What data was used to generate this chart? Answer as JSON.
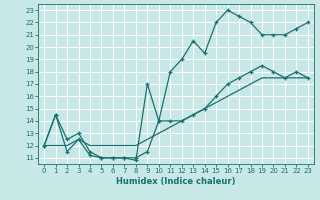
{
  "xlabel": "Humidex (Indice chaleur)",
  "bg_color": "#c8e8e8",
  "grid_color": "#ffffff",
  "line_color": "#1a7070",
  "xlim": [
    -0.5,
    23.5
  ],
  "ylim": [
    10.5,
    23.5
  ],
  "xticks": [
    0,
    1,
    2,
    3,
    4,
    5,
    6,
    7,
    8,
    9,
    10,
    11,
    12,
    13,
    14,
    15,
    16,
    17,
    18,
    19,
    20,
    21,
    22,
    23
  ],
  "yticks": [
    11,
    12,
    13,
    14,
    15,
    16,
    17,
    18,
    19,
    20,
    21,
    22,
    23
  ],
  "line1_x": [
    0,
    1,
    2,
    3,
    4,
    5,
    6,
    7,
    8,
    9,
    10,
    11,
    12,
    13,
    14,
    15,
    16,
    17,
    18,
    19,
    20,
    21,
    22,
    23
  ],
  "line1_y": [
    12,
    14.5,
    11.5,
    12.5,
    11.2,
    11,
    11,
    11,
    11,
    11.5,
    14,
    18,
    19,
    20.5,
    19.5,
    22,
    23,
    22.5,
    22,
    21,
    21,
    21,
    21.5,
    22
  ],
  "line2_x": [
    0,
    1,
    2,
    3,
    4,
    5,
    6,
    7,
    8,
    9,
    10,
    11,
    12,
    13,
    14,
    15,
    16,
    17,
    18,
    19,
    20,
    21,
    22,
    23
  ],
  "line2_y": [
    12,
    14.5,
    12.5,
    13,
    11.5,
    11,
    11,
    11,
    10.8,
    17,
    14,
    14,
    14,
    14.5,
    15,
    16,
    17,
    17.5,
    18,
    18.5,
    18,
    17.5,
    18,
    17.5
  ],
  "line3_x": [
    0,
    1,
    2,
    3,
    4,
    5,
    6,
    7,
    8,
    9,
    10,
    11,
    12,
    13,
    14,
    15,
    16,
    17,
    18,
    19,
    20,
    21,
    22,
    23
  ],
  "line3_y": [
    12,
    12,
    12,
    12.5,
    12,
    12,
    12,
    12,
    12,
    12.5,
    13,
    13.5,
    14,
    14.5,
    15,
    15.5,
    16,
    16.5,
    17,
    17.5,
    17.5,
    17.5,
    17.5,
    17.5
  ],
  "marker_indices1": [
    0,
    1,
    2,
    3,
    4,
    5,
    6,
    7,
    8,
    9,
    10,
    11,
    12,
    13,
    14,
    15,
    16,
    17,
    18,
    19,
    20,
    21,
    22,
    23
  ],
  "marker_indices2": [
    0,
    1,
    2,
    3,
    4,
    5,
    6,
    7,
    8,
    9,
    10,
    11,
    12,
    13,
    14,
    15,
    16,
    17,
    18,
    19,
    20,
    21,
    22,
    23
  ]
}
